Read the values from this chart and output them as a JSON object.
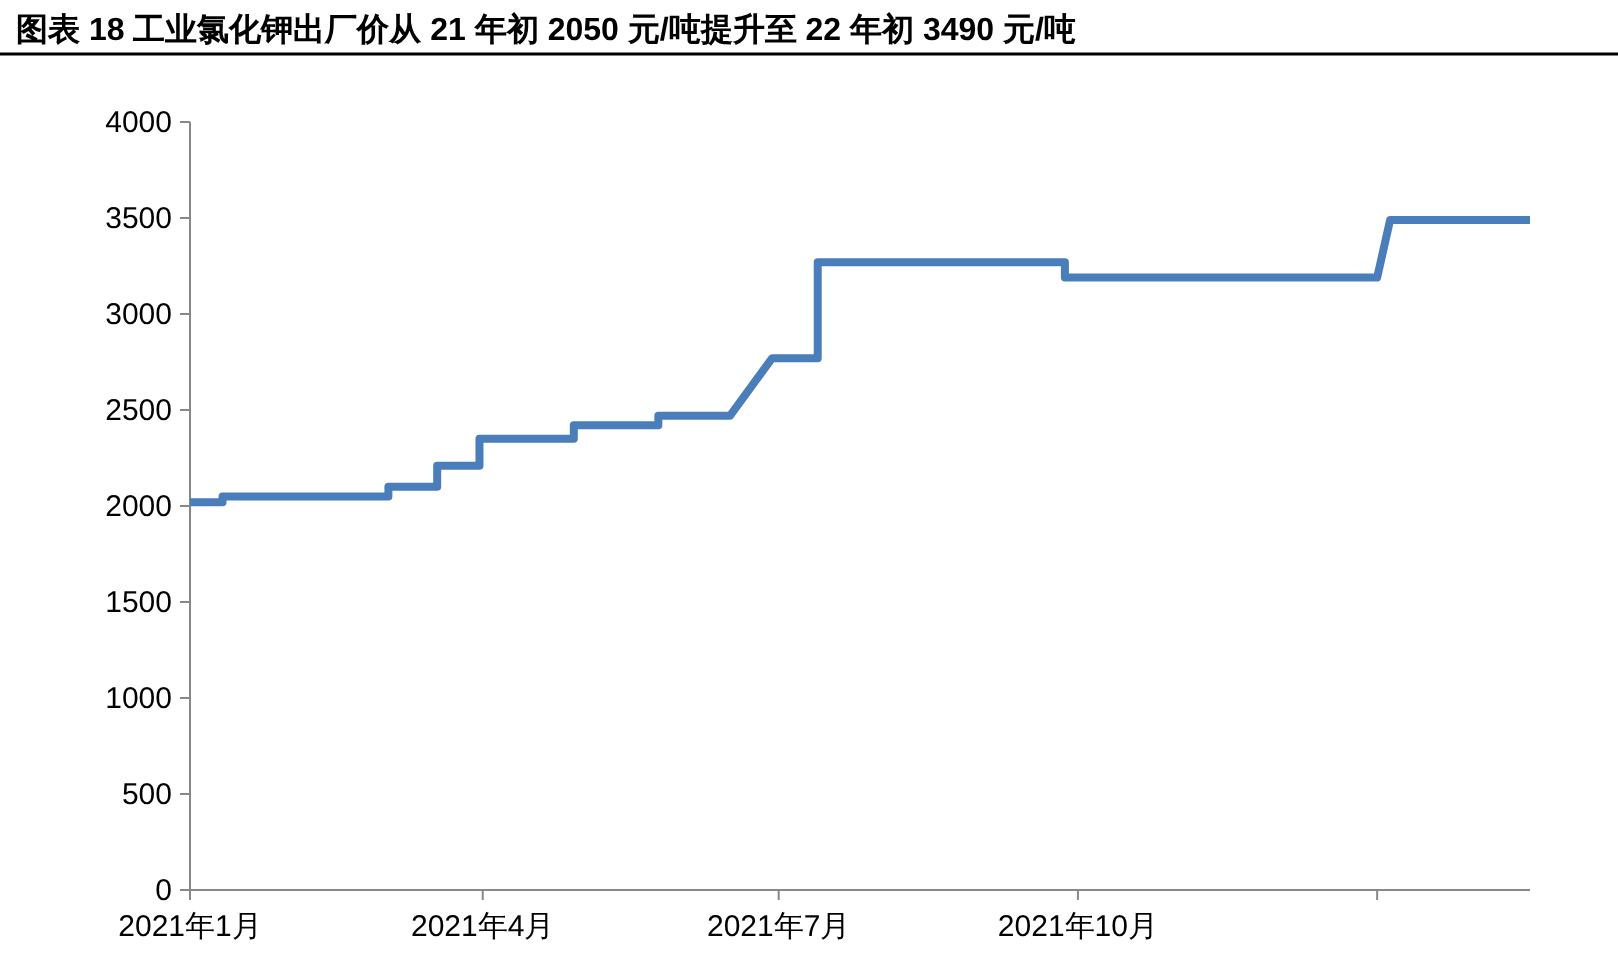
{
  "chart_data": {
    "type": "line",
    "title": "图表 18 工业氯化钾出厂价从 21 年初 2050 元/吨提升至 22 年初 3490 元/吨",
    "x": [
      "2021-01-01",
      "2021-01-11",
      "2021-01-11",
      "2021-03-03",
      "2021-03-03",
      "2021-03-18",
      "2021-03-18",
      "2021-03-31",
      "2021-03-31",
      "2021-04-29",
      "2021-04-29",
      "2021-05-25",
      "2021-05-25",
      "2021-06-16",
      "2021-06-29",
      "2021-06-29",
      "2021-07-13",
      "2021-07-13",
      "2021-09-27",
      "2021-09-27",
      "2022-01-01",
      "2022-01-05",
      "2022-02-17"
    ],
    "series": [
      {
        "color": "#4a7ebb",
        "values": [
          2020,
          2020,
          2050,
          2050,
          2100,
          2100,
          2210,
          2210,
          2350,
          2350,
          2420,
          2420,
          2470,
          2470,
          2770,
          2770,
          2770,
          3270,
          3270,
          3190,
          3190,
          3490,
          3490
        ]
      }
    ],
    "xlim": [
      "2021-01-01",
      "2022-02-17"
    ],
    "xticks": [
      {
        "value": "2021-01-01",
        "label": "2021年1月"
      },
      {
        "value": "2021-04-01",
        "label": "2021年4月"
      },
      {
        "value": "2021-07-01",
        "label": "2021年7月"
      },
      {
        "value": "2021-10-01",
        "label": "2021年10月"
      },
      {
        "value": "2022-01-01",
        "label": null
      }
    ],
    "ylim": [
      0,
      4000
    ],
    "yticks": [
      0,
      500,
      1000,
      1500,
      2000,
      2500,
      3000,
      3500,
      4000
    ],
    "marker": "none",
    "line_style": "solid"
  }
}
